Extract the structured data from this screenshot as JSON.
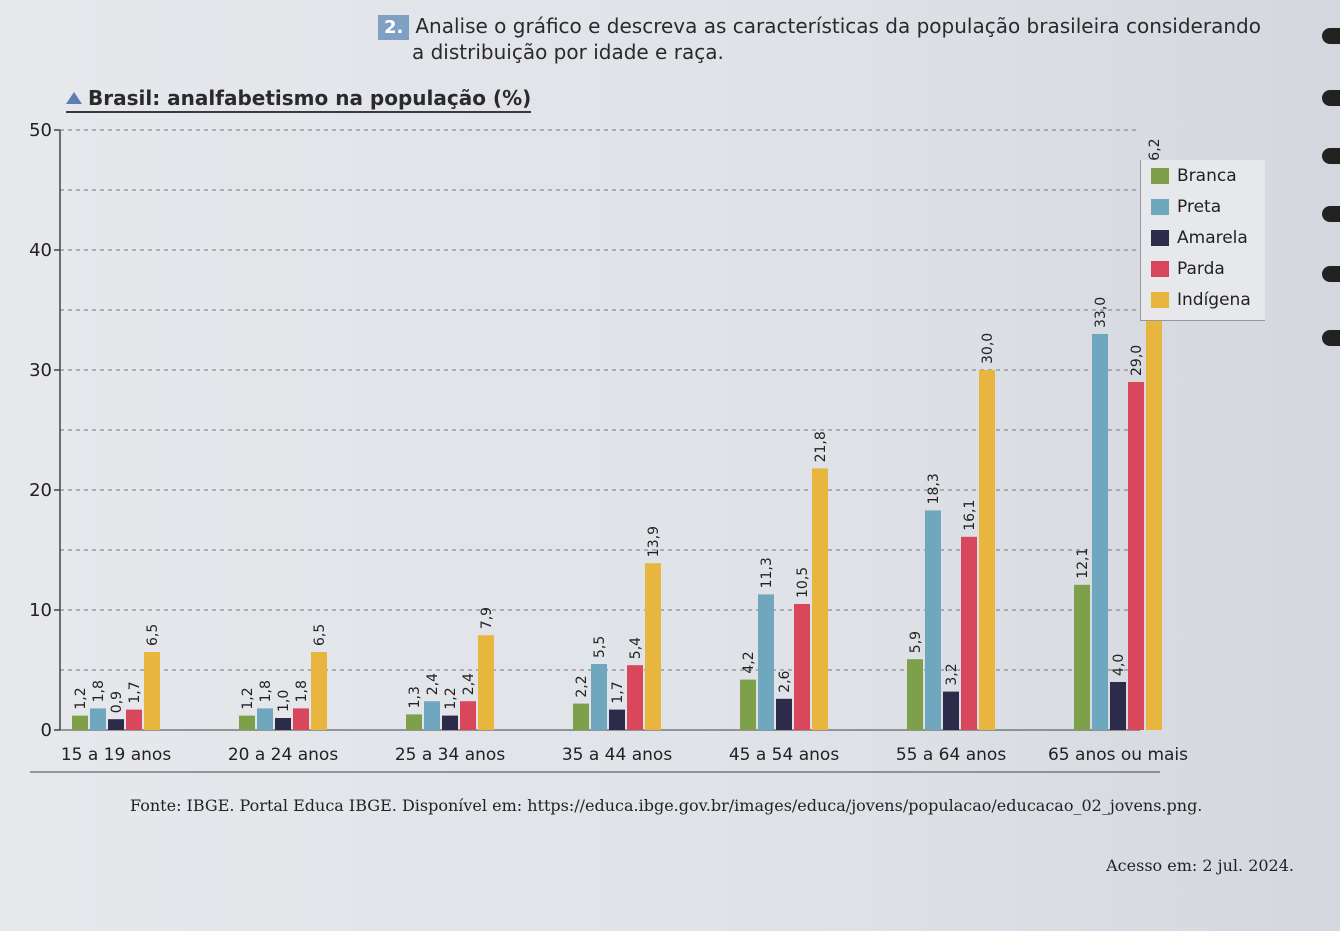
{
  "exercise": {
    "number": "2.",
    "line1": "Analise o gráfico e descreva as características da população brasileira considerando",
    "line2": "a distribuição por idade e raça."
  },
  "chart_data": {
    "type": "bar",
    "title": "Brasil: analfabetismo na população (%)",
    "categories": [
      "15 a 19 anos",
      "20 a 24 anos",
      "25 a 34 anos",
      "35 a 44 anos",
      "45 a 54 anos",
      "55 a 64 anos",
      "65 anos ou mais"
    ],
    "series": [
      {
        "name": "Branca",
        "color": "#7ea04a",
        "values": [
          1.2,
          1.2,
          1.3,
          2.2,
          4.2,
          5.9,
          12.1
        ],
        "labels": [
          "1,2",
          "1,2",
          "1,3",
          "2,2",
          "4,2",
          "5,9",
          "12,1"
        ]
      },
      {
        "name": "Preta",
        "color": "#6fa7bf",
        "values": [
          1.8,
          1.8,
          2.4,
          5.5,
          11.3,
          18.3,
          33.0
        ],
        "labels": [
          "1,8",
          "1,8",
          "2,4",
          "5,5",
          "11,3",
          "18,3",
          "33,0"
        ]
      },
      {
        "name": "Amarela",
        "color": "#2d2b4a",
        "values": [
          0.9,
          1.0,
          1.2,
          1.7,
          2.6,
          3.2,
          4.0
        ],
        "labels": [
          "0,9",
          "1,0",
          "1,2",
          "1,7",
          "2,6",
          "3,2",
          "4,0"
        ]
      },
      {
        "name": "Parda",
        "color": "#d8475c",
        "values": [
          1.7,
          1.8,
          2.4,
          5.4,
          10.5,
          16.1,
          29.0
        ],
        "labels": [
          "1,7",
          "1,8",
          "2,4",
          "5,4",
          "10,5",
          "16,1",
          "29,0"
        ]
      },
      {
        "name": "Indígena",
        "color": "#e8b53e",
        "values": [
          6.5,
          6.5,
          7.9,
          13.9,
          21.8,
          30.0,
          46.2
        ],
        "labels": [
          "6,5",
          "6,5",
          "7,9",
          "13,9",
          "21,8",
          "30,0",
          "46,2"
        ]
      }
    ],
    "ylim": [
      0,
      50
    ],
    "yticks": [
      0,
      10,
      20,
      30,
      40,
      50
    ],
    "grid": true,
    "legend": "top-right"
  },
  "source": "Fonte: IBGE. Portal Educa IBGE. Disponível em: https://educa.ibge.gov.br/images/educa/jovens/populacao/educacao_02_jovens.png.",
  "access": "Acesso em: 2 jul. 2024."
}
